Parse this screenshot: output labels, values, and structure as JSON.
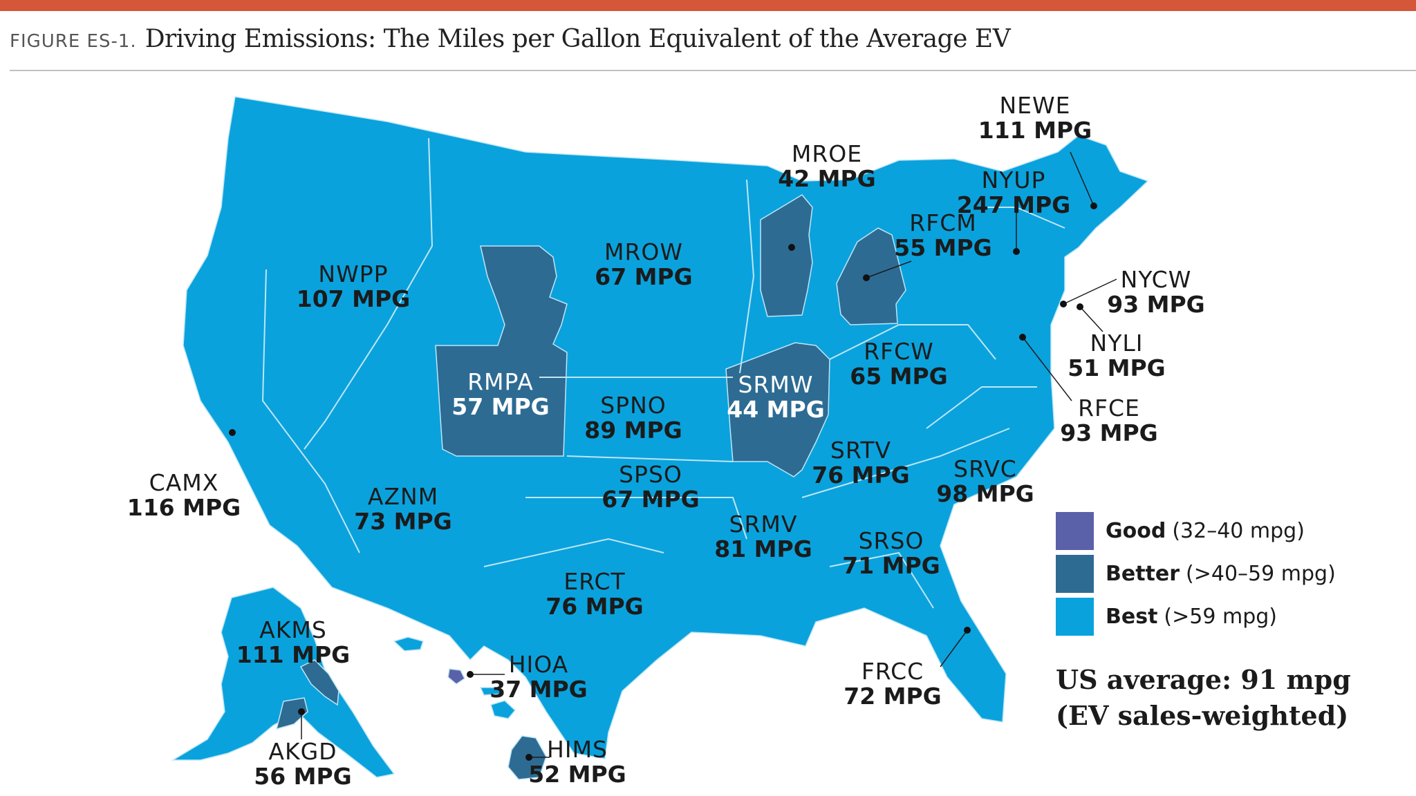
{
  "figure": {
    "label": "FIGURE ES-1.",
    "title": "Driving Emissions: The Miles per Gallon Equivalent of the Average EV"
  },
  "colors": {
    "accent_rule": "#d4573a",
    "good": "#5a61a8",
    "better": "#2d6b93",
    "best": "#0aa2dd",
    "border": "#bfe6f5"
  },
  "regions": [
    {
      "code": "NEWE",
      "value": "111 MPG",
      "category": "best"
    },
    {
      "code": "MROE",
      "value": "42 MPG",
      "category": "better"
    },
    {
      "code": "NYUP",
      "value": "247 MPG",
      "category": "best"
    },
    {
      "code": "RFCM",
      "value": "55 MPG",
      "category": "better"
    },
    {
      "code": "MROW",
      "value": "67 MPG",
      "category": "best"
    },
    {
      "code": "NWPP",
      "value": "107 MPG",
      "category": "best"
    },
    {
      "code": "NYCW",
      "value": "93 MPG",
      "category": "best"
    },
    {
      "code": "NYLI",
      "value": "51 MPG",
      "category": "better"
    },
    {
      "code": "RFCW",
      "value": "65 MPG",
      "category": "best"
    },
    {
      "code": "RMPA",
      "value": "57 MPG",
      "category": "better"
    },
    {
      "code": "SRMW",
      "value": "44 MPG",
      "category": "better"
    },
    {
      "code": "SPNO",
      "value": "89 MPG",
      "category": "best"
    },
    {
      "code": "RFCE",
      "value": "93 MPG",
      "category": "best"
    },
    {
      "code": "SRTV",
      "value": "76 MPG",
      "category": "best"
    },
    {
      "code": "CAMX",
      "value": "116 MPG",
      "category": "best"
    },
    {
      "code": "SPSO",
      "value": "67 MPG",
      "category": "best"
    },
    {
      "code": "SRVC",
      "value": "98 MPG",
      "category": "best"
    },
    {
      "code": "AZNM",
      "value": "73 MPG",
      "category": "best"
    },
    {
      "code": "SRMV",
      "value": "81 MPG",
      "category": "best"
    },
    {
      "code": "SRSO",
      "value": "71 MPG",
      "category": "best"
    },
    {
      "code": "ERCT",
      "value": "76 MPG",
      "category": "best"
    },
    {
      "code": "AKMS",
      "value": "111 MPG",
      "category": "best"
    },
    {
      "code": "HIOA",
      "value": "37 MPG",
      "category": "good"
    },
    {
      "code": "FRCC",
      "value": "72 MPG",
      "category": "best"
    },
    {
      "code": "AKGD",
      "value": "56 MPG",
      "category": "better"
    },
    {
      "code": "HIMS",
      "value": "52 MPG",
      "category": "better"
    }
  ],
  "legend": [
    {
      "name": "Good",
      "range": "(32–40 mpg)",
      "category": "good"
    },
    {
      "name": "Better",
      "range": "(>40–59 mpg)",
      "category": "better"
    },
    {
      "name": "Best",
      "range": "(>59 mpg)",
      "category": "best"
    }
  ],
  "summary": {
    "line1": "US average: 91 mpg",
    "line2": "(EV sales-weighted)"
  }
}
